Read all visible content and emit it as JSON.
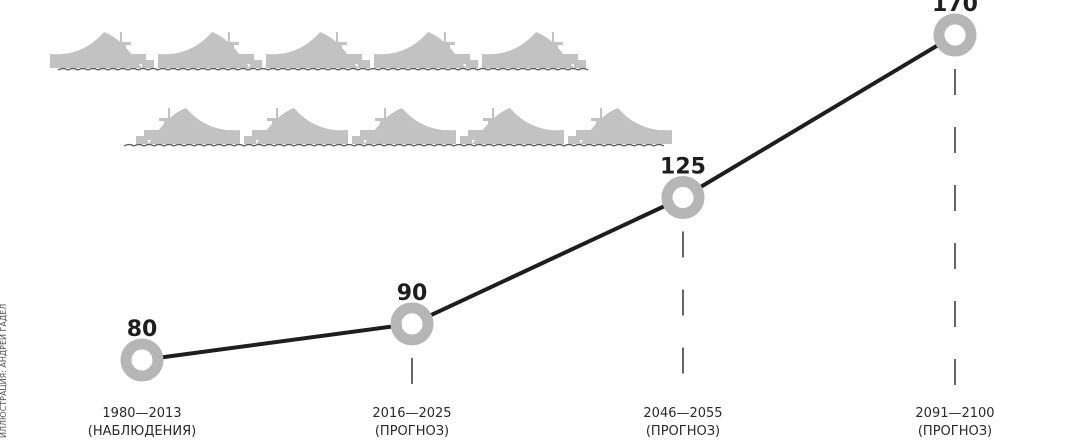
{
  "credit": "ИЛЛЮСТРАЦИЯ: АНДРЕЙ ГАДЕЛ",
  "colors": {
    "line": "#1e1e1e",
    "marker": "#b6b6b6",
    "ship": "#c2c2c2",
    "wave": "#555555",
    "dash": "#333333"
  },
  "icons": {
    "ship": "tanker-ship-icon"
  },
  "chart_data": {
    "type": "line",
    "title": "",
    "xlabel": "",
    "ylabel": "",
    "categories": [
      "1980—2013\n(НАБЛЮДЕНИЯ)",
      "2016—2025\n(ПРОГНОЗ)",
      "2046—2055\n(ПРОГНОЗ)",
      "2091—2100\n(ПРОГНОЗ)"
    ],
    "values": [
      80,
      90,
      125,
      170
    ],
    "value_labels": [
      "80",
      "90",
      "125",
      "170"
    ],
    "ylim": [
      0,
      200
    ],
    "grid": false,
    "legend": "none"
  }
}
